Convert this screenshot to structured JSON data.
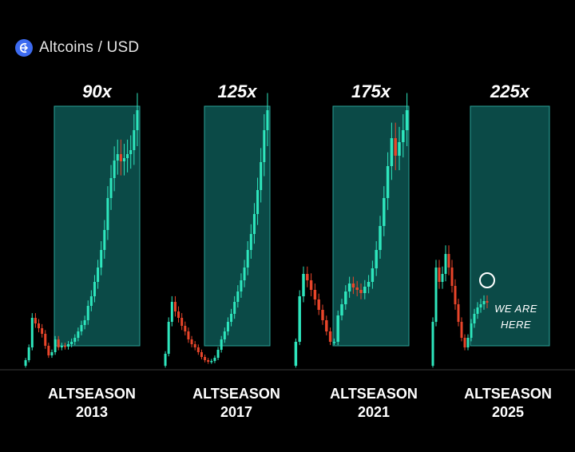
{
  "header": {
    "title": "Altcoins / USD",
    "icon": "altcoins-logo-icon"
  },
  "colors": {
    "up": "#2ee6bd",
    "down": "#e8452a",
    "zone_fill": "#0b4a47",
    "zone_stroke": "#2aa398",
    "background": "#000000"
  },
  "chart_data": {
    "type": "candlestick",
    "title": "Altcoins / USD",
    "annotation": [
      "WE ARE",
      "HERE"
    ],
    "seasons": [
      {
        "label": "ALTSEASON",
        "year": "2013",
        "multiplier": "90x",
        "path": [
          5,
          12,
          28,
          65,
          58,
          52,
          45,
          30,
          18,
          22,
          38,
          28,
          30,
          29,
          32,
          35,
          40,
          48,
          56,
          62,
          80,
          92,
          110,
          128,
          150,
          175,
          215,
          240,
          262,
          270,
          261,
          265,
          270,
          275,
          300,
          325
        ]
      },
      {
        "label": "ALTSEASON",
        "year": "2017",
        "multiplier": "125x",
        "path": [
          5,
          20,
          60,
          85,
          73,
          65,
          55,
          48,
          38,
          32,
          28,
          22,
          16,
          12,
          10,
          11,
          15,
          25,
          38,
          48,
          60,
          70,
          85,
          98,
          112,
          128,
          150,
          170,
          195,
          225,
          260,
          300,
          325
        ]
      },
      {
        "label": "ALTSEASON",
        "year": "2021",
        "multiplier": "175x",
        "path": [
          5,
          35,
          92,
          120,
          112,
          100,
          88,
          75,
          62,
          48,
          35,
          35,
          68,
          82,
          98,
          108,
          103,
          100,
          96,
          104,
          110,
          127,
          150,
          180,
          215,
          255,
          290,
          268,
          285,
          300,
          325
        ]
      },
      {
        "label": "ALTSEASON",
        "year": "2025",
        "multiplier": "225x",
        "path": [
          5,
          60,
          128,
          110,
          120,
          145,
          128,
          105,
          82,
          60,
          40,
          28,
          40,
          58,
          70,
          78,
          82,
          86,
          84
        ]
      }
    ]
  }
}
